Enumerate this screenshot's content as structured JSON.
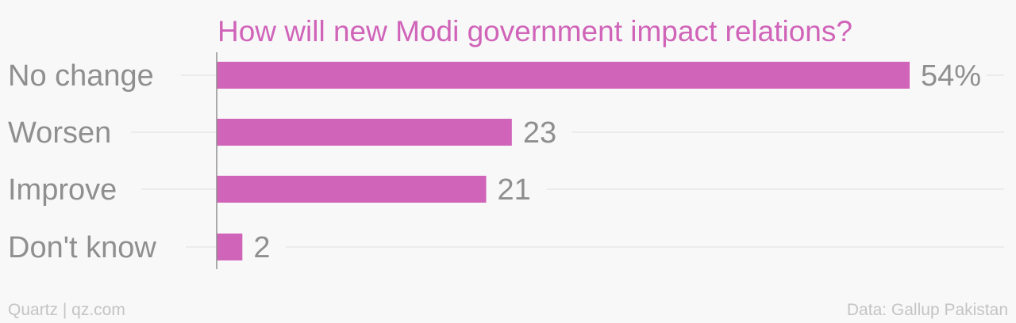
{
  "chart_data": {
    "type": "bar",
    "orientation": "horizontal",
    "title": "How will new Modi government impact relations?",
    "categories": [
      "No change",
      "Worsen",
      "Improve",
      "Don't know"
    ],
    "values": [
      54,
      23,
      21,
      2
    ],
    "value_labels": [
      "54%",
      "23",
      "21",
      "2"
    ],
    "xlim": [
      0,
      54
    ],
    "grid": true,
    "bar_color": "#d064b9"
  },
  "footer": {
    "source_left": "Quartz | qz.com",
    "source_right": "Data: Gallup Pakistan"
  },
  "colors": {
    "background": "#f8f8f8",
    "accent": "#d064b9",
    "text": "#8f8f8f",
    "footer": "#c4c4c4"
  }
}
